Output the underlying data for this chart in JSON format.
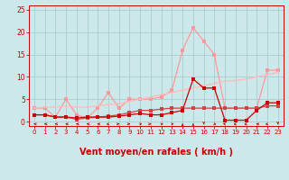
{
  "bg_color": "#cce8ea",
  "grid_color": "#aacdd0",
  "xlabel": "Vent moyen/en rafales ( km/h )",
  "xlabel_color": "#cc0000",
  "xlabel_fontsize": 7,
  "tick_color": "#cc0000",
  "xlim": [
    -0.5,
    23.5
  ],
  "ylim": [
    -1,
    26
  ],
  "xticks": [
    0,
    1,
    2,
    3,
    4,
    5,
    6,
    7,
    8,
    9,
    10,
    11,
    12,
    13,
    14,
    15,
    16,
    17,
    18,
    19,
    20,
    21,
    22,
    23
  ],
  "yticks": [
    0,
    5,
    10,
    15,
    20,
    25
  ],
  "line_light_x": [
    0,
    1,
    2,
    3,
    4,
    5,
    6,
    7,
    8,
    9,
    10,
    11,
    12,
    13,
    14,
    15,
    16,
    17,
    18,
    19,
    20,
    21,
    22,
    23
  ],
  "line_light_y": [
    3.0,
    3.0,
    1.0,
    5.0,
    1.5,
    0.8,
    3.0,
    6.5,
    3.0,
    5.0,
    5.0,
    5.0,
    5.5,
    7.0,
    16.0,
    21.0,
    18.0,
    15.0,
    3.0,
    3.0,
    3.0,
    3.0,
    11.5,
    11.5
  ],
  "line_light_color": "#ff9999",
  "line_pale_x": [
    0,
    1,
    2,
    3,
    4,
    5,
    6,
    7,
    8,
    9,
    10,
    11,
    12,
    13,
    14,
    15,
    16,
    17,
    18,
    19,
    20,
    21,
    22,
    23
  ],
  "line_pale_y": [
    3.0,
    3.2,
    3.2,
    3.5,
    3.2,
    3.2,
    3.5,
    3.8,
    4.0,
    4.5,
    5.0,
    5.5,
    6.0,
    6.5,
    7.0,
    7.5,
    8.0,
    8.5,
    9.0,
    9.2,
    9.5,
    10.0,
    10.5,
    11.0
  ],
  "line_pale_color": "#ffbbbb",
  "line_mid_x": [
    0,
    1,
    2,
    3,
    4,
    5,
    6,
    7,
    8,
    9,
    10,
    11,
    12,
    13,
    14,
    15,
    16,
    17,
    18,
    19,
    20,
    21,
    22,
    23
  ],
  "line_mid_y": [
    1.5,
    1.5,
    1.0,
    1.0,
    0.5,
    0.8,
    1.0,
    1.2,
    1.5,
    2.0,
    2.5,
    2.5,
    2.8,
    3.0,
    3.0,
    3.0,
    3.0,
    3.0,
    3.0,
    3.0,
    3.0,
    3.0,
    3.5,
    3.5
  ],
  "line_mid_color": "#cc4444",
  "line_dark_x": [
    0,
    1,
    2,
    3,
    4,
    5,
    6,
    7,
    8,
    9,
    10,
    11,
    12,
    13,
    14,
    15,
    16,
    17,
    18,
    19,
    20,
    21,
    22,
    23
  ],
  "line_dark_y": [
    1.5,
    1.5,
    1.0,
    1.0,
    0.8,
    1.0,
    1.0,
    1.0,
    1.2,
    1.5,
    1.8,
    1.5,
    1.5,
    2.0,
    2.5,
    9.5,
    7.5,
    7.5,
    0.3,
    0.3,
    0.3,
    2.5,
    4.2,
    4.2
  ],
  "line_dark_color": "#cc0000",
  "marker_size": 2.5,
  "arrow_color": "#cc0000",
  "arrow_dirs": [
    270,
    270,
    270,
    270,
    270,
    270,
    270,
    315,
    90,
    90,
    135,
    90,
    135,
    135,
    180,
    180,
    0,
    45,
    225,
    315,
    315,
    270,
    315,
    0
  ]
}
